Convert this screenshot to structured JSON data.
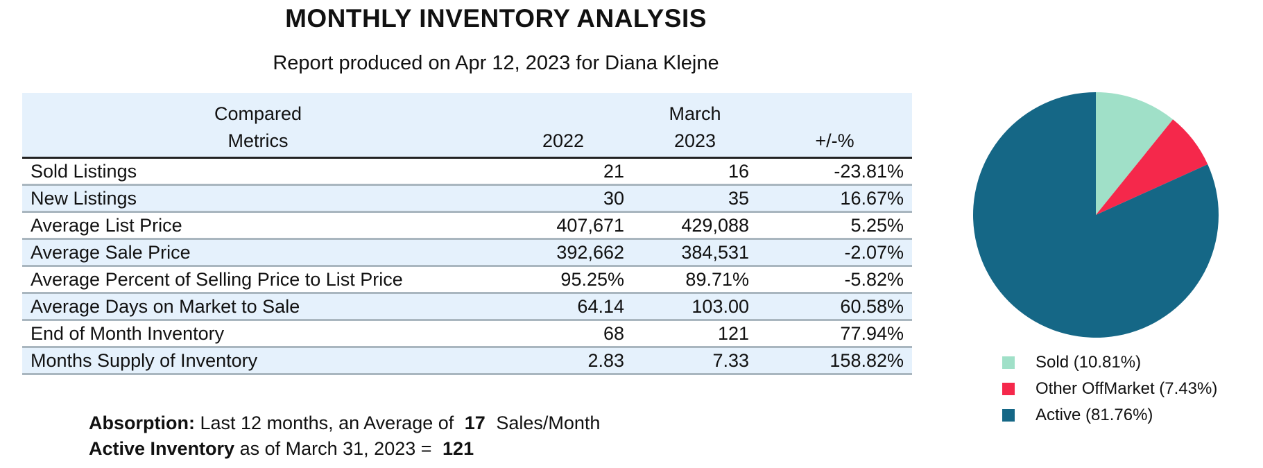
{
  "title": "MONTHLY INVENTORY ANALYSIS",
  "subtitle": "Report produced on Apr 12, 2023 for Diana Klejne",
  "table": {
    "header": {
      "metric_line1": "Compared",
      "metric_line2": "Metrics",
      "period": "March",
      "col_2022": "2022",
      "col_2023": "2023",
      "col_change": "+/-%"
    },
    "rows": [
      {
        "metric": "Sold Listings",
        "y2022": "21",
        "y2023": "16",
        "change": "-23.81%"
      },
      {
        "metric": "New Listings",
        "y2022": "30",
        "y2023": "35",
        "change": "16.67%"
      },
      {
        "metric": "Average List Price",
        "y2022": "407,671",
        "y2023": "429,088",
        "change": "5.25%"
      },
      {
        "metric": "Average Sale Price",
        "y2022": "392,662",
        "y2023": "384,531",
        "change": "-2.07%"
      },
      {
        "metric": "Average Percent of Selling Price to List Price",
        "y2022": "95.25%",
        "y2023": "89.71%",
        "change": "-5.82%"
      },
      {
        "metric": "Average Days on Market to Sale",
        "y2022": "64.14",
        "y2023": "103.00",
        "change": "60.58%"
      },
      {
        "metric": "End of Month Inventory",
        "y2022": "68",
        "y2023": "121",
        "change": "77.94%"
      },
      {
        "metric": "Months Supply of Inventory",
        "y2022": "2.83",
        "y2023": "7.33",
        "change": "158.82%"
      }
    ]
  },
  "summary": {
    "absorption_label": "Absorption:",
    "absorption_text": "Last 12 months, an Average of",
    "absorption_value": "17",
    "absorption_unit": "Sales/Month",
    "active_label": "Active Inventory",
    "active_text": "as of March 31, 2023 =",
    "active_value": "121"
  },
  "pie": {
    "slices": [
      {
        "name": "Sold (10.81%)",
        "percent": 10.81,
        "color": "#a0e0c8"
      },
      {
        "name": "Other OffMarket (7.43%)",
        "percent": 7.43,
        "color": "#f5284b"
      },
      {
        "name": "Active (81.76%)",
        "percent": 81.76,
        "color": "#156786"
      }
    ]
  }
}
